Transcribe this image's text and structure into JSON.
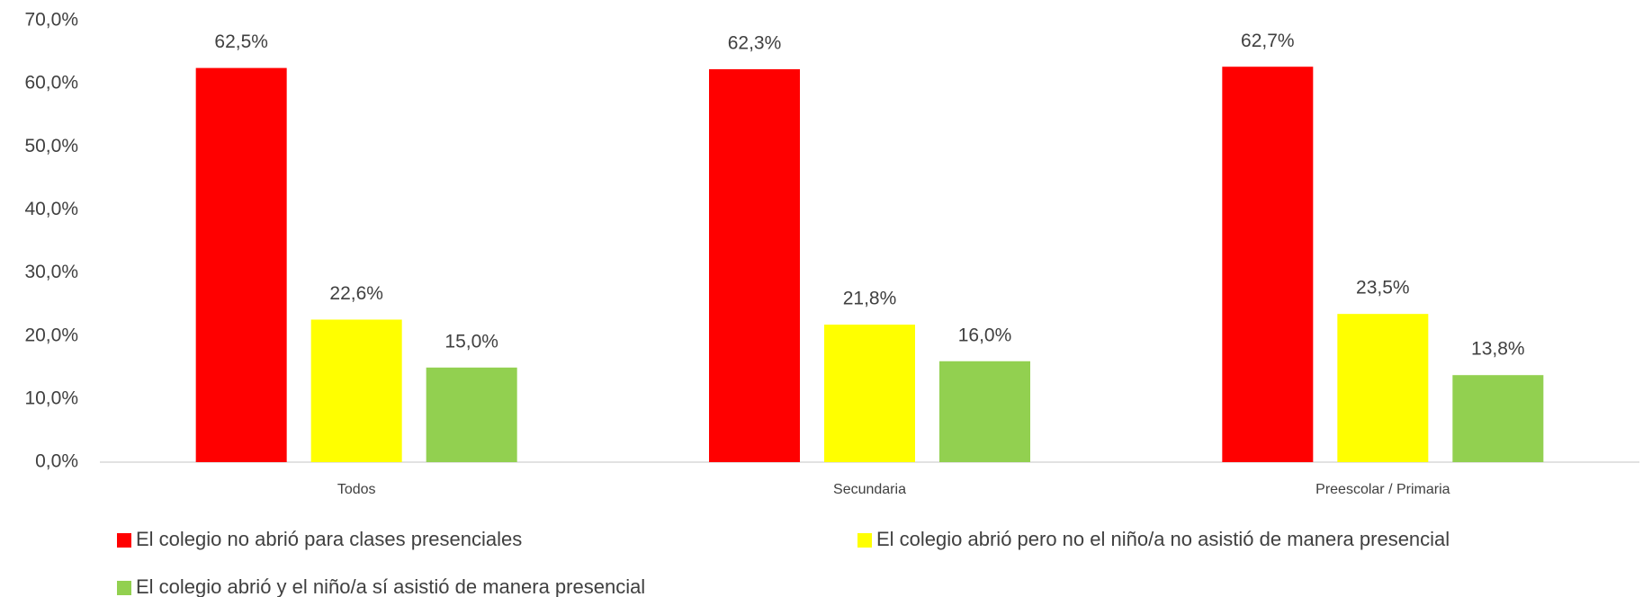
{
  "chart_data": {
    "type": "bar",
    "categories": [
      "Todos",
      "Secundaria",
      "Preescolar / Primaria"
    ],
    "series": [
      {
        "name": "El colegio no abrió para clases presenciales",
        "color": "#ff0000",
        "values": [
          62.5,
          62.3,
          62.7
        ],
        "value_labels": [
          "62,5%",
          "62,3%",
          "62,7%"
        ]
      },
      {
        "name": "El colegio abrió pero no el niño/a no asistió de manera presencial",
        "color": "#ffff00",
        "values": [
          22.6,
          21.8,
          23.5
        ],
        "value_labels": [
          "22,6%",
          "21,8%",
          "23,5%"
        ]
      },
      {
        "name": "El colegio abrió y el niño/a sí asistió de manera presencial",
        "color": "#92d050",
        "values": [
          15.0,
          16.0,
          13.8
        ],
        "value_labels": [
          "15,0%",
          "16,0%",
          "13,8%"
        ]
      }
    ],
    "ylim": [
      0,
      70
    ],
    "yticks": [
      {
        "value": 0,
        "label": "0,0%"
      },
      {
        "value": 10,
        "label": "10,0%"
      },
      {
        "value": 20,
        "label": "20,0%"
      },
      {
        "value": 30,
        "label": "30,0%"
      },
      {
        "value": 40,
        "label": "40,0%"
      },
      {
        "value": 50,
        "label": "50,0%"
      },
      {
        "value": 60,
        "label": "60,0%"
      },
      {
        "value": 70,
        "label": "70,0%"
      }
    ],
    "grid": false,
    "legend": "bottom"
  }
}
